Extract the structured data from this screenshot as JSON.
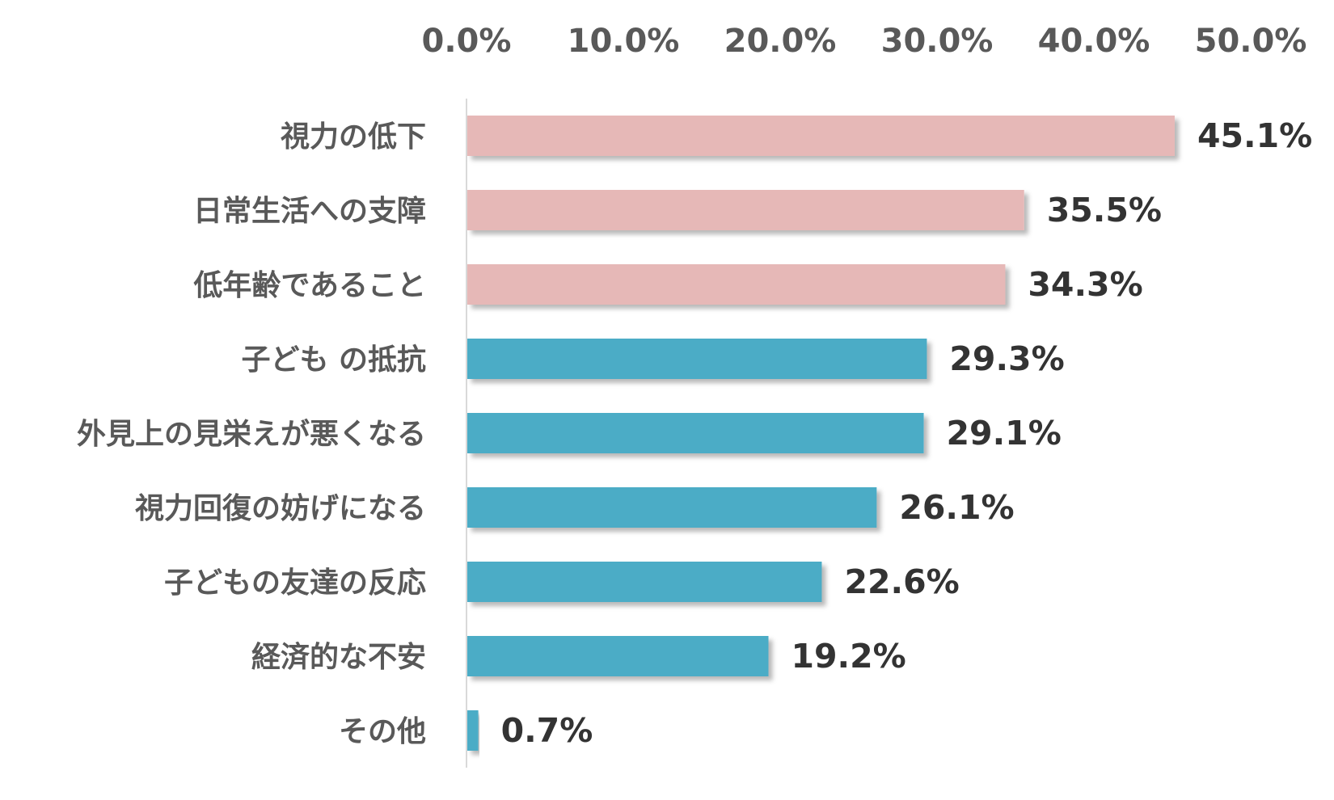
{
  "chart_data": {
    "type": "bar",
    "orientation": "horizontal",
    "title": "",
    "xlabel": "",
    "ylabel": "",
    "xlim": [
      0,
      50
    ],
    "x_ticks": [
      "0.0%",
      "10.0%",
      "20.0%",
      "30.0%",
      "40.0%",
      "50.0%"
    ],
    "x_axis_position": "top",
    "grid": false,
    "legend": "none",
    "categories": [
      "視力の低下",
      "日常生活への支障",
      "低年齢であること",
      "子ども の抵抗",
      "外見上の見栄えが悪くなる",
      "視力回復の妨げになる",
      "子どもの友達の反応",
      "経済的な不安",
      "その他"
    ],
    "values": [
      45.1,
      35.5,
      34.3,
      29.3,
      29.1,
      26.1,
      22.6,
      19.2,
      0.7
    ],
    "value_labels": [
      "45.1%",
      "35.5%",
      "34.3%",
      "29.3%",
      "29.1%",
      "26.1%",
      "22.6%",
      "19.2%",
      "0.7%"
    ],
    "highlight_count": 3,
    "colors": {
      "highlight": "#E6B8B7",
      "normal": "#4BACC6",
      "axis": "#D9D9D9",
      "tick_text": "#595959",
      "value_text": "#333333"
    }
  }
}
